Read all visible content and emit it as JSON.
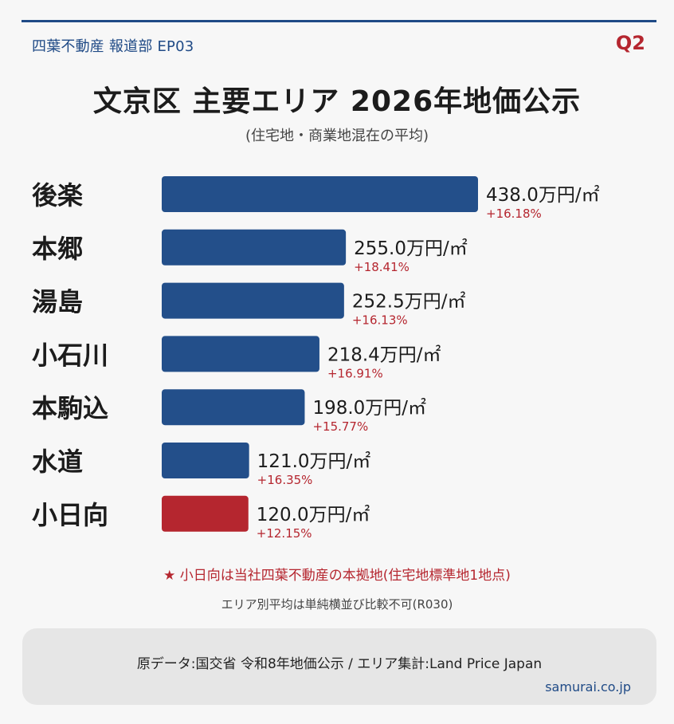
{
  "header": {
    "publisher": "四葉不動産 報道部 EP03",
    "quarter": "Q2"
  },
  "chart_data": {
    "type": "bar",
    "orientation": "horizontal",
    "title": "文京区 主要エリア 2026年地価公示",
    "subtitle": "(住宅地・商業地混在の平均)",
    "unit": "万円/㎡",
    "categories": [
      "後楽",
      "本郷",
      "湯島",
      "小石川",
      "本駒込",
      "水道",
      "小日向"
    ],
    "values": [
      438.0,
      255.0,
      252.5,
      218.4,
      198.0,
      121.0,
      120.0
    ],
    "value_labels": [
      "438.0万円/㎡",
      "255.0万円/㎡",
      "252.5万円/㎡",
      "218.4万円/㎡",
      "198.0万円/㎡",
      "121.0万円/㎡",
      "120.0万円/㎡"
    ],
    "changes": [
      "+16.18%",
      "+18.41%",
      "+16.13%",
      "+16.91%",
      "+15.77%",
      "+16.35%",
      "+12.15%"
    ],
    "highlight": "小日向",
    "colors": {
      "bar": "#234f8a",
      "highlight": "#b5262f",
      "change": "#b5262f"
    }
  },
  "notes": {
    "highlight_note": "★ 小日向は当社四葉不動産の本拠地(住宅地標準地1地点)",
    "comparison_note": "エリア別平均は単純横並び比較不可(R030)"
  },
  "footer": {
    "source": "原データ:国交省 令和8年地価公示 / エリア集計:Land Price Japan",
    "site": "samurai.co.jp"
  }
}
